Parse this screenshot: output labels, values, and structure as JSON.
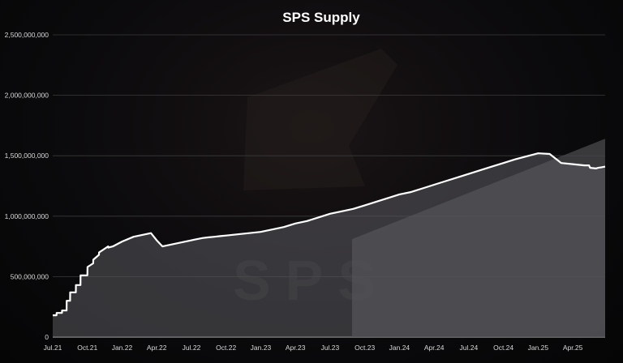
{
  "chart_data": {
    "type": "line",
    "title": "SPS Supply",
    "xlabel": "",
    "ylabel": "",
    "ylim": [
      0,
      2500000000
    ],
    "yticks": [
      0,
      500000000,
      1000000000,
      1500000000,
      2000000000,
      2500000000
    ],
    "ytick_labels": [
      "0",
      "500,000,000",
      "1,000,000,000",
      "1,500,000,000",
      "2,000,000,000",
      "2,500,000,000"
    ],
    "xticks": [
      "Jul.21",
      "Oct.21",
      "Jan.22",
      "Apr.22",
      "Jul.22",
      "Oct.22",
      "Jan.23",
      "Apr.23",
      "Jul.23",
      "Oct.23",
      "Jan.24",
      "Apr.24",
      "Jul.24",
      "Oct.24",
      "Jan.25",
      "Apr.25"
    ],
    "grid": true,
    "legend": "none",
    "series": [
      {
        "name": "",
        "color": "#ffffff",
        "x": [
          0,
          0.33,
          0.34,
          0.8,
          0.81,
          1.2,
          1.21,
          1.5,
          1.51,
          2.0,
          2.01,
          2.4,
          2.41,
          3.0,
          3.01,
          3.5,
          3.51,
          4.0,
          4.01,
          4.8,
          4.81,
          5.2,
          6.0,
          7.0,
          7.5,
          8.0,
          8.5,
          9.0,
          9.5,
          10.0,
          10.5,
          11.0,
          11.5,
          12.0,
          12.2,
          12.5,
          13.0,
          13.5,
          14.0,
          14.5,
          15.0,
          16.0,
          17.0,
          18.0,
          19.0,
          20.0,
          21.0,
          22.0,
          23.0,
          24.0,
          25.0,
          26.0,
          27.0,
          28.0,
          29.0,
          30.0,
          31.0,
          32.0,
          33.0,
          34.0,
          35.0,
          36.0,
          37.0,
          38.0,
          39.0,
          40.0,
          41.0,
          42.0,
          43.0,
          44.0,
          45.0,
          46.0,
          46.4,
          46.5,
          47.0,
          47.2,
          47.5,
          47.8
        ],
        "y": [
          180000000,
          180000000,
          200000000,
          200000000,
          220000000,
          220000000,
          300000000,
          300000000,
          370000000,
          370000000,
          430000000,
          430000000,
          510000000,
          510000000,
          580000000,
          610000000,
          640000000,
          680000000,
          700000000,
          750000000,
          740000000,
          750000000,
          790000000,
          830000000,
          840000000,
          850000000,
          860000000,
          800000000,
          750000000,
          760000000,
          770000000,
          780000000,
          790000000,
          800000000,
          805000000,
          810000000,
          820000000,
          825000000,
          830000000,
          835000000,
          840000000,
          850000000,
          860000000,
          870000000,
          890000000,
          910000000,
          940000000,
          960000000,
          990000000,
          1020000000,
          1040000000,
          1060000000,
          1090000000,
          1120000000,
          1150000000,
          1180000000,
          1200000000,
          1230000000,
          1260000000,
          1290000000,
          1320000000,
          1350000000,
          1380000000,
          1410000000,
          1440000000,
          1470000000,
          1495000000,
          1520000000,
          1515000000,
          1440000000,
          1430000000,
          1420000000,
          1420000000,
          1400000000,
          1395000000,
          1400000000,
          1405000000,
          1410000000
        ]
      }
    ],
    "upper_band": {
      "x": [
        25.9,
        47.8
      ],
      "y": [
        810000000,
        1640000000
      ]
    }
  },
  "watermark": "SPS"
}
